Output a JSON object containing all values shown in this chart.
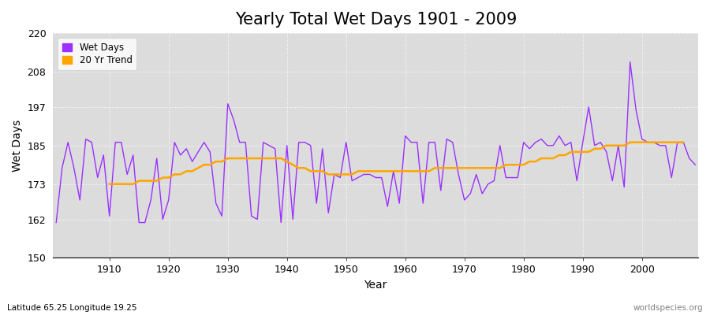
{
  "title": "Yearly Total Wet Days 1901 - 2009",
  "xlabel": "Year",
  "ylabel": "Wet Days",
  "subtitle": "Latitude 65.25 Longitude 19.25",
  "watermark": "worldspecies.org",
  "ylim": [
    150,
    220
  ],
  "yticks": [
    150,
    162,
    173,
    185,
    197,
    208,
    220
  ],
  "wet_days_color": "#9B30FF",
  "trend_color": "#FFA500",
  "background_color": "#DCDCDC",
  "legend_wet_days": "Wet Days",
  "legend_trend": "20 Yr Trend",
  "years": [
    1901,
    1902,
    1903,
    1904,
    1905,
    1906,
    1907,
    1908,
    1909,
    1910,
    1911,
    1912,
    1913,
    1914,
    1915,
    1916,
    1917,
    1918,
    1919,
    1920,
    1921,
    1922,
    1923,
    1924,
    1925,
    1926,
    1927,
    1928,
    1929,
    1930,
    1931,
    1932,
    1933,
    1934,
    1935,
    1936,
    1937,
    1938,
    1939,
    1940,
    1941,
    1942,
    1943,
    1944,
    1945,
    1946,
    1947,
    1948,
    1949,
    1950,
    1951,
    1952,
    1953,
    1954,
    1955,
    1956,
    1957,
    1958,
    1959,
    1960,
    1961,
    1962,
    1963,
    1964,
    1965,
    1966,
    1967,
    1968,
    1969,
    1970,
    1971,
    1972,
    1973,
    1974,
    1975,
    1976,
    1977,
    1978,
    1979,
    1980,
    1981,
    1982,
    1983,
    1984,
    1985,
    1986,
    1987,
    1988,
    1989,
    1990,
    1991,
    1992,
    1993,
    1994,
    1995,
    1996,
    1997,
    1998,
    1999,
    2000,
    2001,
    2002,
    2003,
    2004,
    2005,
    2006,
    2007,
    2008,
    2009
  ],
  "wet_days": [
    161,
    178,
    186,
    178,
    168,
    187,
    186,
    175,
    182,
    163,
    186,
    186,
    176,
    182,
    161,
    161,
    168,
    181,
    162,
    168,
    186,
    182,
    184,
    180,
    183,
    186,
    183,
    167,
    163,
    198,
    193,
    186,
    186,
    163,
    162,
    186,
    185,
    184,
    161,
    185,
    162,
    186,
    186,
    185,
    167,
    184,
    164,
    176,
    175,
    186,
    174,
    175,
    176,
    176,
    175,
    175,
    166,
    177,
    167,
    188,
    186,
    186,
    167,
    186,
    186,
    171,
    187,
    186,
    176,
    168,
    170,
    176,
    170,
    173,
    174,
    185,
    175,
    175,
    175,
    186,
    184,
    186,
    187,
    185,
    185,
    188,
    185,
    186,
    174,
    186,
    197,
    185,
    186,
    183,
    174,
    185,
    172,
    211,
    196,
    187,
    186,
    186,
    185,
    185,
    175,
    186,
    186,
    181,
    179
  ],
  "trend": [
    null,
    null,
    null,
    null,
    null,
    null,
    null,
    null,
    null,
    173,
    173,
    173,
    173,
    173,
    174,
    174,
    174,
    174,
    175,
    175,
    176,
    176,
    177,
    177,
    178,
    179,
    179,
    180,
    180,
    181,
    181,
    181,
    181,
    181,
    181,
    181,
    181,
    181,
    181,
    180,
    179,
    178,
    178,
    177,
    177,
    177,
    176,
    176,
    176,
    176,
    176,
    177,
    177,
    177,
    177,
    177,
    177,
    177,
    177,
    177,
    177,
    177,
    177,
    177,
    178,
    178,
    178,
    178,
    178,
    178,
    178,
    178,
    178,
    178,
    178,
    178,
    179,
    179,
    179,
    179,
    180,
    180,
    181,
    181,
    181,
    182,
    182,
    183,
    183,
    183,
    183,
    184,
    184,
    185,
    185,
    185,
    185,
    186,
    186,
    186,
    186,
    186,
    186,
    186,
    186,
    186,
    186,
    null
  ]
}
